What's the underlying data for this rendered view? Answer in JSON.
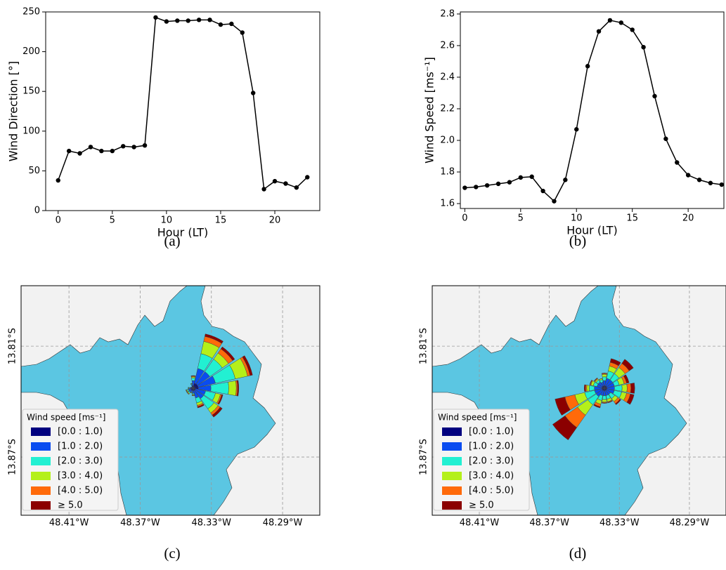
{
  "chart_data": [
    {
      "type": "line",
      "panel_label": "(a)",
      "x_label": "Hour (LT)",
      "y_label": "Wind Direction [°]",
      "x": [
        0,
        1,
        2,
        3,
        4,
        5,
        6,
        7,
        8,
        9,
        10,
        11,
        12,
        13,
        14,
        15,
        16,
        17,
        18,
        19,
        20,
        21,
        22,
        23
      ],
      "values": [
        38,
        75,
        72,
        80,
        75,
        75,
        81,
        80,
        82,
        243,
        238,
        239,
        239,
        240,
        240,
        234,
        235,
        224,
        148,
        27,
        37,
        34,
        29,
        42
      ],
      "color": "#000000",
      "xlim": [
        -1.15,
        24.15
      ],
      "xticks": [
        0,
        5,
        10,
        15,
        20
      ],
      "ylim": [
        0,
        250
      ],
      "yticks": [
        0,
        50,
        100,
        150,
        200,
        250
      ]
    },
    {
      "type": "line",
      "panel_label": "(b)",
      "x_label": "Hour (LT)",
      "y_label": "Wind Speed [ms⁻¹]",
      "x": [
        0,
        1,
        2,
        3,
        4,
        5,
        6,
        7,
        8,
        9,
        10,
        11,
        12,
        13,
        14,
        15,
        16,
        17,
        18,
        19,
        20,
        21,
        22,
        23
      ],
      "values": [
        1.7,
        1.705,
        1.715,
        1.725,
        1.735,
        1.765,
        1.77,
        1.68,
        1.615,
        1.75,
        2.07,
        2.47,
        2.69,
        2.76,
        2.745,
        2.7,
        2.59,
        2.28,
        2.01,
        1.86,
        1.78,
        1.75,
        1.73,
        1.72
      ],
      "color": "#000000",
      "xlim": [
        -0.4,
        23.2
      ],
      "xticks": [
        0,
        5,
        10,
        15,
        20
      ],
      "ylim": [
        1.569,
        2.813
      ],
      "yticks": [
        1.6,
        1.8,
        {
          "value": 2,
          "label": "2.0"
        },
        2.2,
        2.4,
        2.6,
        2.8
      ]
    },
    {
      "type": "windrose",
      "panel_label": "(c)",
      "legend_title": "Wind speed [ms⁻¹]",
      "legend": "lower left",
      "grid": true,
      "land_color": "#f2f2f2",
      "water_color": "#5bc6e2",
      "directions": [
        0,
        22.5,
        45,
        67.5,
        90,
        112.5,
        135,
        157.5,
        180,
        202.5,
        225,
        247.5,
        270,
        292.5,
        315,
        337.5
      ],
      "rlim": [
        0,
        25
      ],
      "series": [
        {
          "name": "[0.0 : 1.0)",
          "color": "#00007f",
          "values": [
            1,
            2,
            2,
            2,
            2,
            1,
            1,
            1,
            1,
            1,
            1,
            1,
            1,
            0.5,
            0.5,
            1
          ]
        },
        {
          "name": "[1.0 : 2.0)",
          "color": "#0a4cf0",
          "values": [
            2,
            6,
            6,
            7,
            5,
            4,
            4,
            3,
            1,
            0.5,
            1,
            1,
            0.5,
            0.5,
            0.3,
            0.5
          ]
        },
        {
          "name": "[2.0 : 3.0)",
          "color": "#22f0d2",
          "values": [
            1,
            6,
            6,
            8,
            7,
            4,
            5,
            2,
            0.5,
            0.3,
            0.5,
            0.5,
            0.3,
            0,
            0,
            0.3
          ]
        },
        {
          "name": "[3.0 : 4.0)",
          "color": "#b4f01a",
          "values": [
            0.5,
            5,
            3,
            5,
            3,
            2,
            2,
            1,
            0.3,
            0.2,
            0.3,
            0.3,
            0.2,
            0,
            0,
            0.2
          ]
        },
        {
          "name": "[4.0 : 5.0)",
          "color": "#ff6a0a",
          "values": [
            0.3,
            2,
            2,
            1,
            0.5,
            0.5,
            1,
            0.5,
            0.2,
            0,
            0.2,
            0.2,
            0,
            0,
            0,
            0
          ]
        },
        {
          "name": "≥ 5.0",
          "color": "#8b0000",
          "values": [
            0.2,
            1,
            1,
            1,
            0.5,
            0.5,
            1,
            0.5,
            0,
            0,
            0,
            0,
            0,
            0,
            0,
            0
          ]
        }
      ],
      "xlim": [
        -48.4369,
        -48.2691
      ],
      "xticks": [
        {
          "value": -48.41,
          "label": "48.41°W"
        },
        {
          "value": -48.37,
          "label": "48.37°W"
        },
        {
          "value": -48.33,
          "label": "48.33°W"
        },
        {
          "value": -48.29,
          "label": "48.29°W"
        }
      ],
      "ylim": [
        -13.9015,
        -13.7773
      ],
      "yticks": [
        {
          "value": -13.81,
          "label": "13.81°S"
        },
        {
          "value": -13.87,
          "label": "13.87°S"
        }
      ]
    },
    {
      "type": "windrose",
      "panel_label": "(d)",
      "legend_title": "Wind speed [ms⁻¹]",
      "legend": "lower left",
      "grid": true,
      "land_color": "#f2f2f2",
      "water_color": "#5bc6e2",
      "directions": [
        0,
        22.5,
        45,
        67.5,
        90,
        112.5,
        135,
        157.5,
        180,
        202.5,
        225,
        247.5,
        270,
        292.5,
        315,
        337.5
      ],
      "rlim": [
        0,
        25
      ],
      "series": [
        {
          "name": "[0.0 : 1.0)",
          "color": "#00007f",
          "values": [
            1,
            1,
            1,
            1,
            1,
            1,
            1,
            1,
            1,
            1,
            1,
            1,
            1,
            1,
            1,
            1
          ]
        },
        {
          "name": "[1.0 : 2.0)",
          "color": "#0a4cf0",
          "values": [
            2,
            3,
            3,
            3,
            3,
            3,
            2,
            2,
            2,
            2,
            3,
            3,
            3,
            2,
            2,
            1.5
          ]
        },
        {
          "name": "[2.0 : 3.0)",
          "color": "#22f0d2",
          "values": [
            1.5,
            3,
            3,
            2,
            3,
            3,
            2,
            1.5,
            1.5,
            2,
            4,
            4,
            2,
            1.5,
            1,
            1
          ]
        },
        {
          "name": "[3.0 : 4.0)",
          "color": "#b4f01a",
          "values": [
            1,
            2,
            3,
            2,
            2,
            2,
            1.5,
            1,
            1,
            1.5,
            5,
            4,
            1,
            1,
            0.5,
            0.5
          ]
        },
        {
          "name": "[4.0 : 5.0)",
          "color": "#ff6a0a",
          "values": [
            0.3,
            1.5,
            2,
            1,
            1.5,
            1.5,
            1,
            0.3,
            0.3,
            1,
            6,
            4,
            0.5,
            0.3,
            0.3,
            0
          ]
        },
        {
          "name": "≥ 5.0",
          "color": "#8b0000",
          "values": [
            0.2,
            1.5,
            2,
            1,
            1.5,
            1.5,
            0.5,
            0.2,
            0.2,
            0.5,
            6,
            4,
            0.5,
            0.2,
            0.2,
            0
          ]
        }
      ],
      "xlim": [
        -48.4369,
        -48.2691
      ],
      "xticks": [
        {
          "value": -48.41,
          "label": "48.41°W"
        },
        {
          "value": -48.37,
          "label": "48.37°W"
        },
        {
          "value": -48.33,
          "label": "48.33°W"
        },
        {
          "value": -48.29,
          "label": "48.29°W"
        }
      ],
      "ylim": [
        -13.9015,
        -13.7773
      ],
      "yticks": [
        {
          "value": -13.81,
          "label": "13.81°S"
        },
        {
          "value": -13.87,
          "label": "13.87°S"
        }
      ]
    }
  ]
}
